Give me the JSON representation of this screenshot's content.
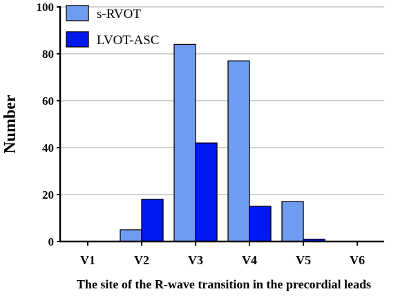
{
  "chart_data": {
    "type": "bar",
    "title": "",
    "xlabel": "The site of the  R-wave transition in the precordial leads",
    "ylabel": "Number",
    "ylim": [
      0,
      100
    ],
    "yticks": [
      "0",
      "20",
      "40",
      "60",
      "80",
      "100"
    ],
    "grid": "horizontal",
    "legend_position": "top-left",
    "categories": [
      "V1",
      "V2",
      "V3",
      "V4",
      "V5",
      "V6"
    ],
    "series": [
      {
        "name": "s-RVOT",
        "color": "#6f9cf1",
        "values": [
          0,
          5,
          84,
          77,
          17,
          0
        ]
      },
      {
        "name": "LVOT-ASC",
        "color": "#0019f0",
        "values": [
          0,
          18,
          42,
          15,
          1,
          0
        ]
      }
    ]
  }
}
